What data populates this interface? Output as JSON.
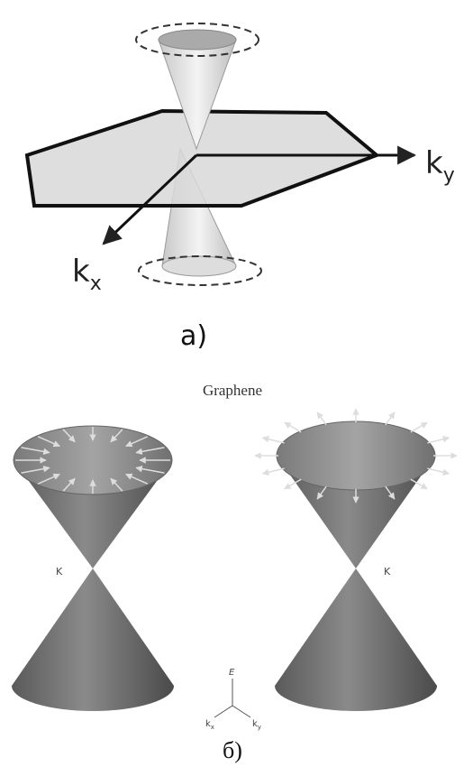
{
  "panel_a": {
    "axes": {
      "ky": {
        "main": "k",
        "sub": "y"
      },
      "kx": {
        "main": "k",
        "sub": "x"
      }
    },
    "caption": "а)"
  },
  "panel_b": {
    "title": "Graphene",
    "left_point": "K",
    "right_point": "K",
    "axes": {
      "e": "E",
      "kx": {
        "main": "k",
        "sub": "x"
      },
      "ky": {
        "main": "k",
        "sub": "y"
      }
    },
    "caption": "б)"
  }
}
